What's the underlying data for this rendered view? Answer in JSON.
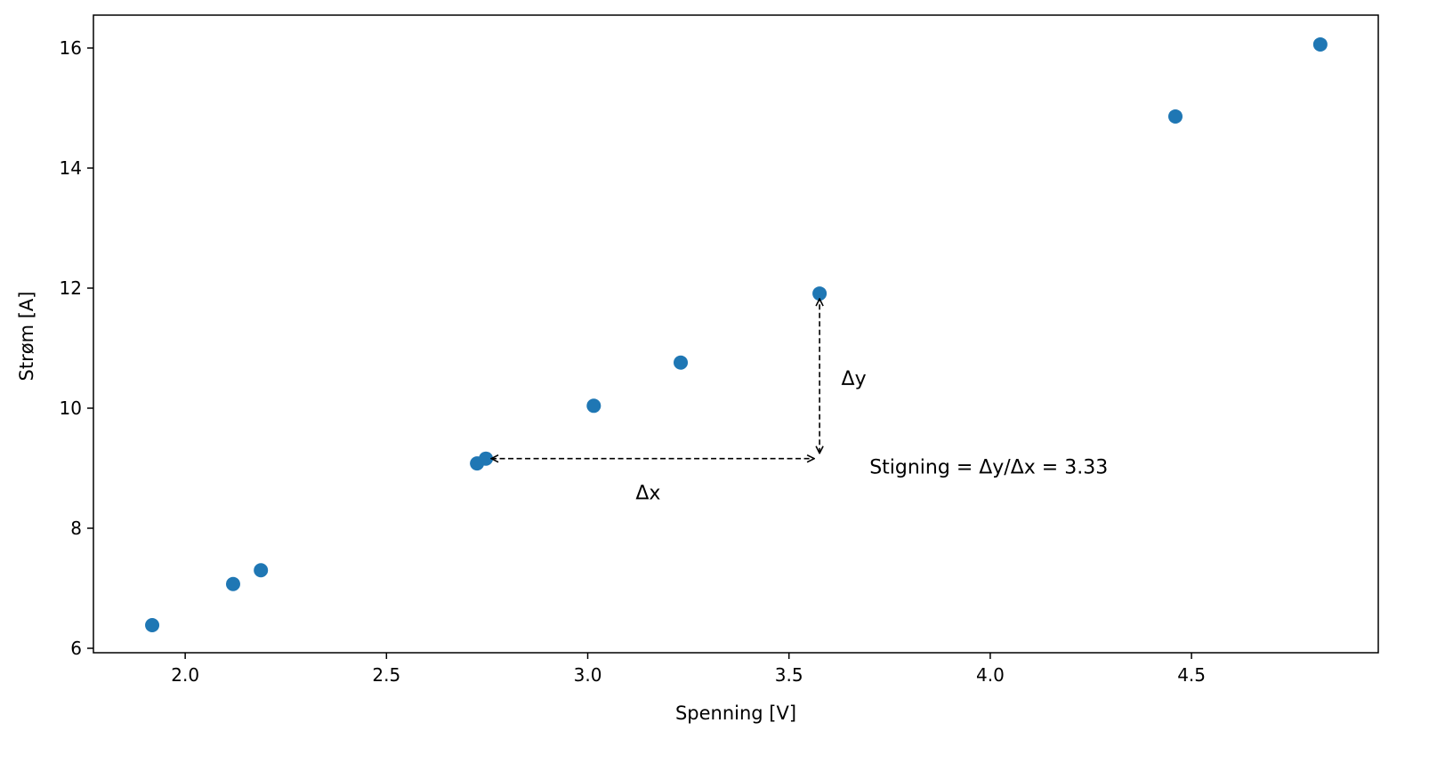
{
  "chart_data": {
    "type": "scatter",
    "title": "",
    "xlabel": "Spenning [V]",
    "ylabel": "Strøm [A]",
    "xlim": [
      1.772,
      4.964
    ],
    "ylim": [
      5.926,
      16.548
    ],
    "xticks": [
      2.0,
      2.5,
      3.0,
      3.5,
      4.0,
      4.5
    ],
    "xtick_labels": [
      "2.0",
      "2.5",
      "3.0",
      "3.5",
      "4.0",
      "4.5"
    ],
    "yticks": [
      6,
      8,
      10,
      12,
      14,
      16
    ],
    "ytick_labels": [
      "6",
      "8",
      "10",
      "12",
      "14",
      "16"
    ],
    "grid": false,
    "color": "#1f77b4",
    "x": [
      1.918,
      2.119,
      2.188,
      2.725,
      2.747,
      3.015,
      3.231,
      3.576,
      4.46,
      4.82
    ],
    "y": [
      6.385,
      7.07,
      7.3,
      9.08,
      9.16,
      10.04,
      10.76,
      11.91,
      14.86,
      16.06
    ],
    "annotations": {
      "dx_arrow": {
        "from": [
          2.747,
          9.16
        ],
        "to": [
          3.576,
          9.16
        ]
      },
      "dy_arrow": {
        "from": [
          3.576,
          9.16
        ],
        "to": [
          3.576,
          11.91
        ]
      },
      "dx_label": {
        "text": "Δx",
        "at": [
          3.15,
          8.6
        ]
      },
      "dy_label": {
        "text": "Δy",
        "at": [
          3.63,
          10.5
        ]
      },
      "slope_label": {
        "text": "Stigning = Δy/Δx = 3.33",
        "at": [
          3.7,
          9.03
        ]
      }
    }
  }
}
